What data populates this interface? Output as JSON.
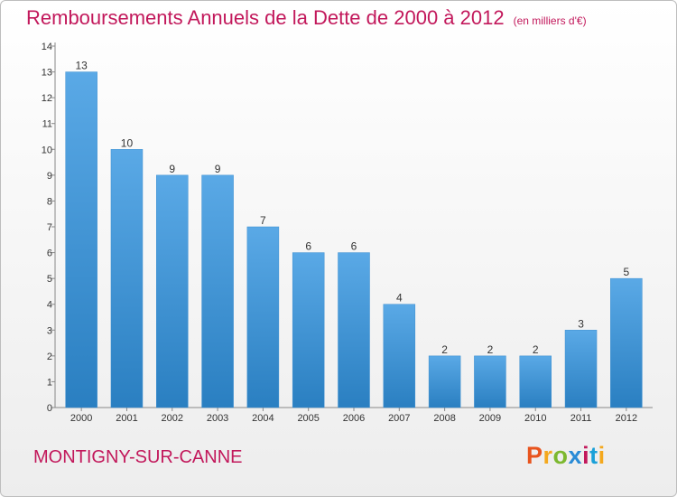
{
  "chart_data": {
    "type": "bar",
    "title": "Remboursements Annuels de la Dette de 2000 à 2012",
    "subtitle": "(en milliers d'€)",
    "categories": [
      "2000",
      "2001",
      "2002",
      "2003",
      "2004",
      "2005",
      "2006",
      "2007",
      "2008",
      "2009",
      "2010",
      "2011",
      "2012"
    ],
    "values": [
      13,
      10,
      9,
      9,
      7,
      6,
      6,
      4,
      2,
      2,
      2,
      3,
      5
    ],
    "ylim": [
      0,
      14
    ],
    "yticks": [
      0,
      1,
      2,
      3,
      4,
      5,
      6,
      7,
      8,
      9,
      10,
      11,
      12,
      13,
      14
    ],
    "grid": false,
    "bar_color": "#5aa9e6",
    "bar_color_dark": "#2a7fc1"
  },
  "footer": {
    "commune": "MONTIGNY-SUR-CANNE",
    "logo_text": "Proxiti",
    "logo_colors": [
      "#e8541e",
      "#f4a81d",
      "#7cb82f",
      "#2a8bd6",
      "#c2185b",
      "#1aa0d8",
      "#f4a81d"
    ]
  }
}
